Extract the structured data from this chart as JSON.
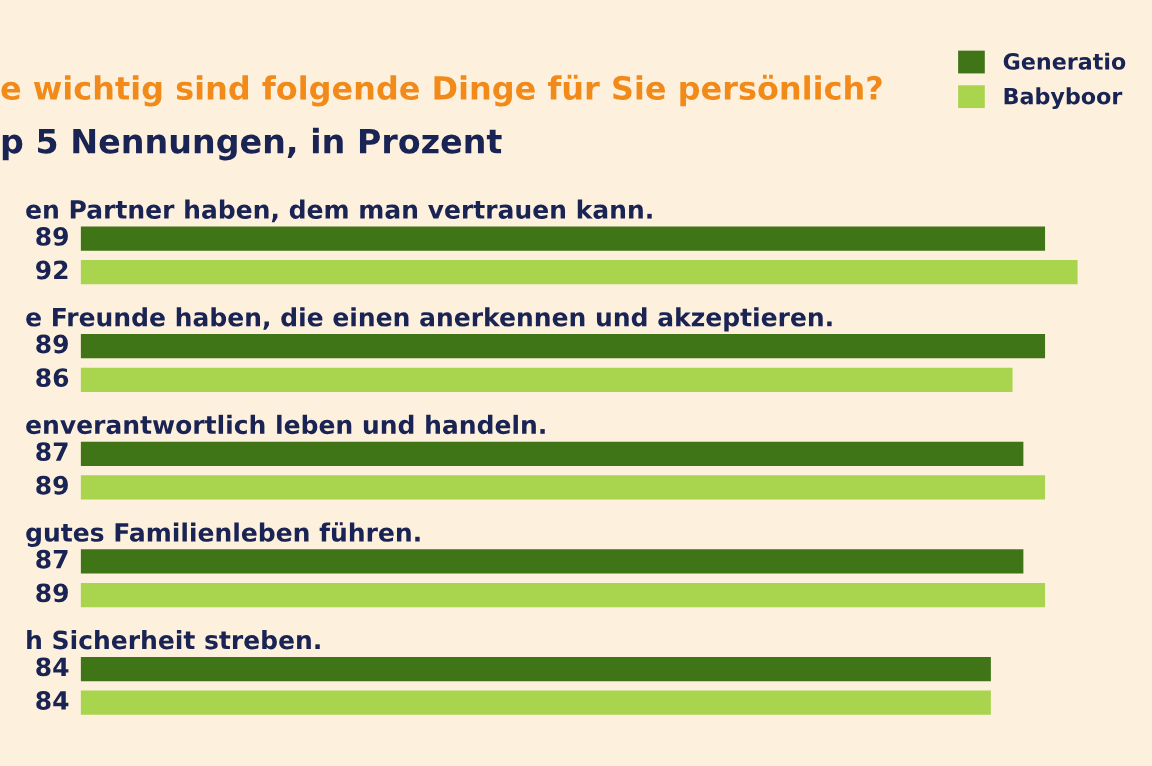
{
  "chart_data": {
    "type": "bar",
    "orientation": "horizontal",
    "title": "e wichtig sind folgende Dinge für Sie persönlich?",
    "subtitle": "p 5 Nennungen, in Prozent",
    "categories": [
      "en Partner haben, dem man vertrauen kann.",
      "e Freunde haben, die einen anerkennen und akzeptieren.",
      "enverantwortlich leben und handeln.",
      "gutes Familienleben führen.",
      "h Sicherheit streben."
    ],
    "series": [
      {
        "name": "Generatio",
        "color": "#3f7517",
        "values": [
          89,
          89,
          87,
          87,
          84
        ]
      },
      {
        "name": "Babyboor",
        "color": "#a8d44e",
        "values": [
          92,
          86,
          89,
          89,
          84
        ]
      }
    ],
    "data_labels": true,
    "legend": "top right"
  }
}
